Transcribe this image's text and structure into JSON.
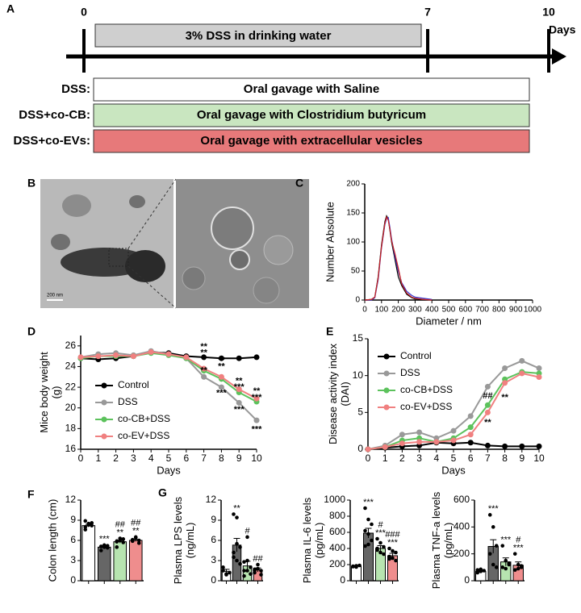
{
  "panel_a": {
    "label": "A",
    "timeline_ticks": [
      "0",
      "7",
      "10"
    ],
    "unit": "Days",
    "treatment": "3% DSS in drinking water",
    "groups": [
      {
        "name": "DSS:",
        "text": "Oral gavage with Saline"
      },
      {
        "name": "DSS+co-CB:",
        "text": "Oral gavage with Clostridium butyricum"
      },
      {
        "name": "DSS+co-EVs:",
        "text": "Oral gavage with extracellular vesicles"
      }
    ]
  },
  "panel_b": {
    "label": "B",
    "scale_bar": "200 nm"
  },
  "chart_data": [
    {
      "type": "line",
      "label": "C",
      "ylabel": [
        "Number Absolute"
      ],
      "xlabel": "Diameter / nm",
      "x": [
        0,
        40,
        60,
        80,
        100,
        120,
        130,
        140,
        150,
        160,
        180,
        200,
        220,
        250,
        280,
        300,
        350,
        400
      ],
      "xlim": [
        0,
        1000
      ],
      "xticks": [
        0,
        100,
        200,
        300,
        400,
        500,
        600,
        700,
        800,
        900,
        1000
      ],
      "ylim": [
        0,
        200
      ],
      "yticks": [
        0,
        50,
        100,
        150,
        200
      ],
      "series": [
        {
          "color": "#000000",
          "values": [
            0,
            1,
            5,
            40,
            95,
            135,
            145,
            140,
            120,
            100,
            70,
            40,
            25,
            10,
            4,
            2,
            1,
            0
          ]
        },
        {
          "color": "#3333cc",
          "values": [
            0,
            0,
            4,
            35,
            90,
            130,
            140,
            142,
            125,
            105,
            75,
            50,
            30,
            15,
            8,
            5,
            3,
            1
          ]
        },
        {
          "color": "#cc2222",
          "values": [
            0,
            1,
            5,
            38,
            92,
            132,
            143,
            138,
            122,
            102,
            80,
            55,
            28,
            12,
            5,
            3,
            1,
            0
          ]
        }
      ]
    },
    {
      "type": "line",
      "label": "D",
      "ylabel": [
        "Mice body weight",
        "(g)"
      ],
      "xlabel": "Days",
      "x": [
        0,
        1,
        2,
        3,
        4,
        5,
        6,
        7,
        8,
        9,
        10
      ],
      "xlim": [
        0,
        10
      ],
      "xticks": [
        0,
        1,
        2,
        3,
        4,
        5,
        6,
        7,
        8,
        9,
        10
      ],
      "ylim": [
        16,
        27
      ],
      "yticks": [
        16,
        18,
        20,
        22,
        24,
        26
      ],
      "markers": true,
      "series": [
        {
          "name": "Control",
          "color": "#000000",
          "values": [
            24.8,
            24.7,
            24.8,
            25.0,
            25.4,
            25.3,
            25.0,
            24.9,
            24.8,
            24.8,
            24.9
          ]
        },
        {
          "name": "DSS",
          "color": "#999999",
          "values": [
            24.9,
            25.2,
            25.3,
            25.1,
            25.5,
            25.2,
            24.8,
            23.0,
            22.0,
            20.5,
            18.8
          ]
        },
        {
          "name": "co-CB+DSS",
          "color": "#5cc25c",
          "values": [
            24.8,
            25.0,
            25.0,
            25.0,
            25.3,
            25.1,
            24.8,
            23.6,
            22.8,
            21.5,
            20.6
          ]
        },
        {
          "name": "co-EV+DSS",
          "color": "#f08080",
          "values": [
            24.9,
            25.0,
            25.1,
            25.0,
            25.4,
            25.2,
            24.9,
            23.8,
            23.0,
            21.8,
            20.9
          ]
        }
      ],
      "annotations": [
        {
          "text": "**",
          "color": "#e02020",
          "x": 7,
          "y": 25.9
        },
        {
          "text": "**",
          "color": "#3cb43c",
          "x": 7,
          "y": 25.3
        },
        {
          "text": "**",
          "color": "#888888",
          "x": 7,
          "y": 23.6
        },
        {
          "text": "**",
          "color": "#e02020",
          "x": 8,
          "y": 24.6
        },
        {
          "text": "**",
          "color": "#3cb43c",
          "x": 8,
          "y": 24.0
        },
        {
          "text": "***",
          "color": "#888888",
          "x": 8,
          "y": 21.4
        },
        {
          "text": "**",
          "color": "#e02020",
          "x": 9,
          "y": 22.6
        },
        {
          "text": "***",
          "color": "#3cb43c",
          "x": 9,
          "y": 22.0
        },
        {
          "text": "***",
          "color": "#888888",
          "x": 9,
          "y": 19.8
        },
        {
          "text": "**",
          "color": "#e02020",
          "x": 10,
          "y": 21.6
        },
        {
          "text": "***",
          "color": "#3cb43c",
          "x": 10,
          "y": 21.0
        },
        {
          "text": "***",
          "color": "#888888",
          "x": 10,
          "y": 17.9
        }
      ]
    },
    {
      "type": "line",
      "label": "E",
      "ylabel": [
        "Disease activity index",
        "(DAI)"
      ],
      "xlabel": "Days",
      "x": [
        0,
        1,
        2,
        3,
        4,
        5,
        6,
        7,
        8,
        9,
        10
      ],
      "xlim": [
        0,
        10
      ],
      "xticks": [
        0,
        1,
        2,
        3,
        4,
        5,
        6,
        7,
        8,
        9,
        10
      ],
      "ylim": [
        0,
        15
      ],
      "yticks": [
        0,
        5,
        10,
        15
      ],
      "markers": true,
      "series": [
        {
          "name": "Control",
          "color": "#000000",
          "values": [
            0,
            0.2,
            0.4,
            0.5,
            0.9,
            0.8,
            0.9,
            0.5,
            0.4,
            0.4,
            0.4
          ]
        },
        {
          "name": "DSS",
          "color": "#999999",
          "values": [
            0,
            0.5,
            2,
            2.3,
            1.5,
            2.5,
            4.5,
            8.5,
            11,
            12,
            11
          ]
        },
        {
          "name": "co-CB+DSS",
          "color": "#5cc25c",
          "values": [
            0,
            0.3,
            1.2,
            1.5,
            1,
            1.5,
            3,
            6,
            9.5,
            10.5,
            10.3
          ]
        },
        {
          "name": "co-EV+DSS",
          "color": "#f08080",
          "values": [
            0,
            0.3,
            0.8,
            1,
            1,
            1.2,
            2,
            5,
            9,
            10.3,
            9.8
          ]
        }
      ],
      "annotations": [
        {
          "text": "##",
          "color": "#3cb43c",
          "x": 7,
          "y": 7.2
        },
        {
          "text": "**",
          "color": "#e02020",
          "x": 7,
          "y": 3.6
        },
        {
          "text": "**",
          "color": "#e02020",
          "x": 8,
          "y": 7.0
        }
      ]
    },
    {
      "type": "bar",
      "label": "F",
      "ylabel": [
        "Colon length (cm)"
      ],
      "categories": [
        null,
        null,
        null,
        null
      ],
      "colors": [
        "#ffffff",
        "#666666",
        "#b7e4b0",
        "#ef8d8d"
      ],
      "values": [
        8.2,
        5.0,
        5.8,
        6.0
      ],
      "errors": [
        0.2,
        0.15,
        0.2,
        0.15
      ],
      "points": [
        [
          8.0,
          8.3,
          8.6,
          7.6,
          8.5,
          8.2,
          8.9
        ],
        [
          5.1,
          5.0,
          5.2,
          4.5,
          5.3,
          4.9,
          5.1
        ],
        [
          5.8,
          6.0,
          6.2,
          5.0,
          6.3,
          5.7,
          5.9
        ],
        [
          6.1,
          6.4,
          5.6,
          5.9,
          6.5,
          6.0
        ]
      ],
      "ylim": [
        0,
        12
      ],
      "yticks": [
        0,
        3,
        6,
        9,
        12
      ],
      "bar_annotations": [
        null,
        [
          "***"
        ],
        [
          "##",
          "**"
        ],
        [
          "##",
          "**"
        ]
      ]
    },
    {
      "type": "bar",
      "label": "G",
      "ylabel": [
        "Plasma LPS levels",
        "(ng/mL)"
      ],
      "categories": [
        null,
        null,
        null,
        null
      ],
      "colors": [
        "#ffffff",
        "#666666",
        "#b7e4b0",
        "#ef8d8d"
      ],
      "values": [
        1.4,
        5.3,
        2.2,
        1.6
      ],
      "errors": [
        0.3,
        1.0,
        0.7,
        0.3
      ],
      "points": [
        [
          1.5,
          1.0,
          1.2,
          2.0,
          0.9
        ],
        [
          9.9,
          9.4,
          5,
          4.2,
          3,
          2.5,
          3.5,
          5.5
        ],
        [
          2.8,
          6.5,
          1,
          1.5,
          3,
          2,
          0.7,
          1.5
        ],
        [
          1.5,
          2.4,
          0.9,
          1.2,
          1.8,
          1.5,
          1.7
        ]
      ],
      "ylim": [
        0,
        12
      ],
      "yticks": [
        0,
        3,
        6,
        9,
        12
      ],
      "bar_annotations": [
        null,
        [
          "**"
        ],
        [
          "#"
        ],
        [
          "##"
        ]
      ]
    },
    {
      "type": "bar",
      "ylabel": [
        "Plasma IL-6 levels",
        "(pg/mL)"
      ],
      "categories": [
        null,
        null,
        null,
        null
      ],
      "colors": [
        "#ffffff",
        "#666666",
        "#b7e4b0",
        "#ef8d8d"
      ],
      "values": [
        180,
        590,
        400,
        310
      ],
      "errors": [
        10,
        60,
        35,
        30
      ],
      "points": [
        [
          180,
          170,
          190,
          175,
          185
        ],
        [
          900,
          760,
          700,
          620,
          580,
          500,
          430,
          450
        ],
        [
          520,
          470,
          420,
          400,
          350,
          330,
          380
        ],
        [
          400,
          370,
          350,
          300,
          280,
          250,
          270
        ]
      ],
      "ylim": [
        0,
        1000
      ],
      "yticks": [
        0,
        200,
        400,
        600,
        800,
        1000
      ],
      "bar_annotations": [
        null,
        [
          "***"
        ],
        [
          "#",
          "***"
        ],
        [
          "###",
          "***"
        ]
      ]
    },
    {
      "type": "bar",
      "ylabel": [
        "Plasma TNF-a levels",
        "(pg/mL)"
      ],
      "categories": [
        null,
        null,
        null,
        null
      ],
      "colors": [
        "#ffffff",
        "#666666",
        "#b7e4b0",
        "#ef8d8d"
      ],
      "values": [
        70,
        255,
        140,
        115
      ],
      "errors": [
        8,
        50,
        30,
        25
      ],
      "points": [
        [
          60,
          70,
          75,
          80,
          85
        ],
        [
          490,
          400,
          260,
          200,
          120,
          100
        ],
        [
          260,
          150,
          130,
          100,
          90,
          120
        ],
        [
          200,
          120,
          100,
          80,
          90,
          110
        ]
      ],
      "ylim": [
        0,
        600
      ],
      "yticks": [
        0,
        200,
        400,
        600
      ],
      "bar_annotations": [
        null,
        [
          "***"
        ],
        [
          "***"
        ],
        [
          "#",
          "***"
        ]
      ]
    }
  ]
}
